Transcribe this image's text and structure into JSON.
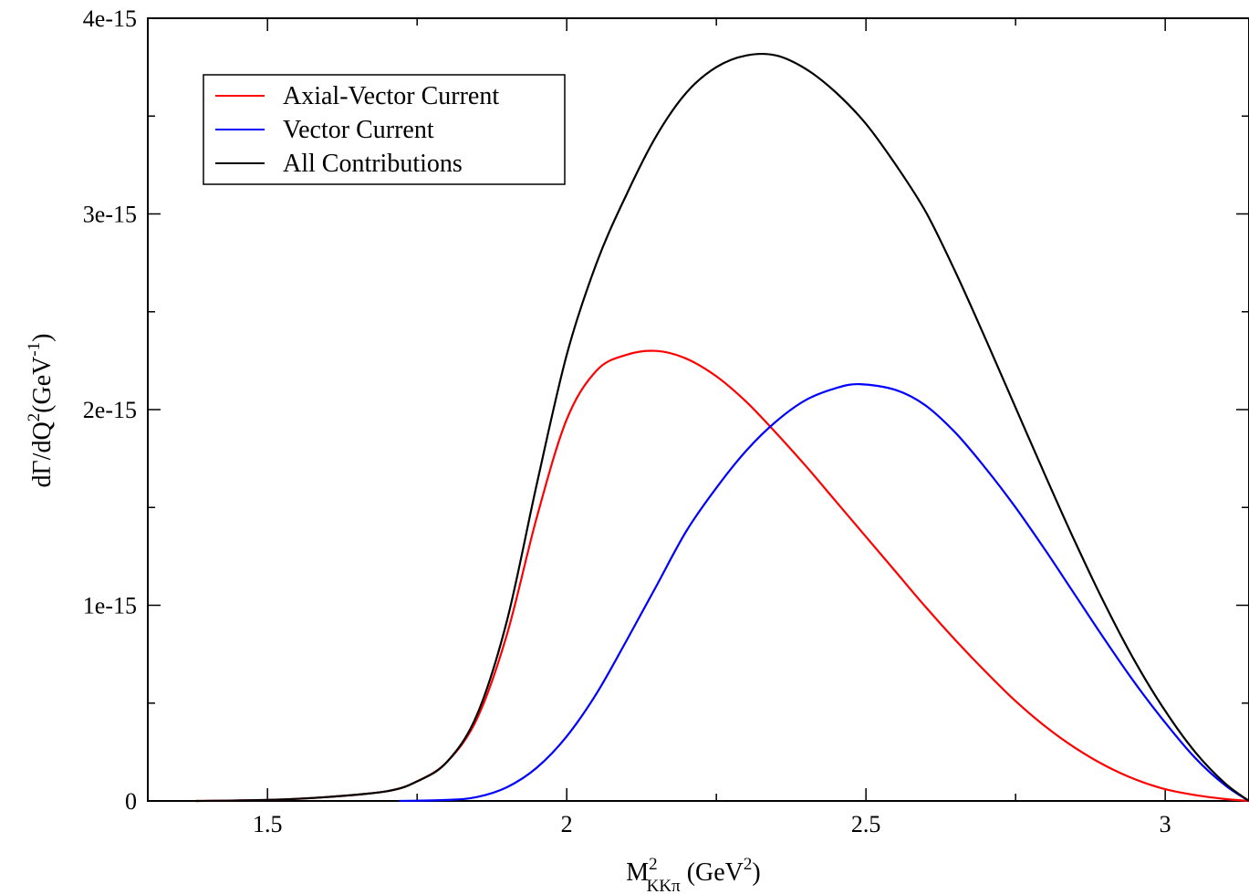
{
  "chart_data": {
    "type": "line",
    "xlabel": {
      "main": "M",
      "sup": "2",
      "sub": "KKπ",
      "units_pre": " (GeV",
      "units_sup": "2",
      "units_post": ")"
    },
    "ylabel": {
      "pre": "dΓ/dQ",
      "sup1": "2",
      "mid": "(GeV",
      "sup2": "-1",
      "post": ")"
    },
    "xlim": [
      1.3,
      3.14
    ],
    "ylim": [
      0,
      4e-15
    ],
    "x_ticks": [
      {
        "value": 1.5,
        "label": "1.5"
      },
      {
        "value": 2.0,
        "label": "2"
      },
      {
        "value": 2.5,
        "label": "2.5"
      },
      {
        "value": 3.0,
        "label": "3"
      }
    ],
    "y_ticks": [
      {
        "value": 0,
        "label": "0"
      },
      {
        "value": 1e-15,
        "label": "1e-15"
      },
      {
        "value": 2e-15,
        "label": "2e-15"
      },
      {
        "value": 3e-15,
        "label": "3e-15"
      },
      {
        "value": 4e-15,
        "label": "4e-15"
      }
    ],
    "grid": false,
    "legend_position": "top-left",
    "series": [
      {
        "name": "Axial-Vector Current",
        "color": "#ff0000",
        "points": [
          [
            1.38,
            0
          ],
          [
            1.5,
            5e-18
          ],
          [
            1.6,
            2e-17
          ],
          [
            1.7,
            5e-17
          ],
          [
            1.75,
            1e-16
          ],
          [
            1.8,
            2e-16
          ],
          [
            1.85,
            4.2e-16
          ],
          [
            1.9,
            8.5e-16
          ],
          [
            1.95,
            1.45e-15
          ],
          [
            2.0,
            1.95e-15
          ],
          [
            2.05,
            2.2e-15
          ],
          [
            2.1,
            2.28e-15
          ],
          [
            2.15,
            2.3e-15
          ],
          [
            2.2,
            2.26e-15
          ],
          [
            2.25,
            2.17e-15
          ],
          [
            2.3,
            2.04e-15
          ],
          [
            2.35,
            1.88e-15
          ],
          [
            2.4,
            1.71e-15
          ],
          [
            2.45,
            1.53e-15
          ],
          [
            2.5,
            1.35e-15
          ],
          [
            2.55,
            1.17e-15
          ],
          [
            2.6,
            9.9e-16
          ],
          [
            2.65,
            8.2e-16
          ],
          [
            2.7,
            6.6e-16
          ],
          [
            2.75,
            5.1e-16
          ],
          [
            2.8,
            3.8e-16
          ],
          [
            2.85,
            2.7e-16
          ],
          [
            2.9,
            1.8e-16
          ],
          [
            2.95,
            1.1e-16
          ],
          [
            3.0,
            6e-17
          ],
          [
            3.05,
            3e-17
          ],
          [
            3.1,
            1e-17
          ],
          [
            3.14,
            0
          ]
        ]
      },
      {
        "name": "Vector Current",
        "color": "#0000ff",
        "points": [
          [
            1.72,
            0
          ],
          [
            1.8,
            5e-18
          ],
          [
            1.85,
            2e-17
          ],
          [
            1.9,
            7e-17
          ],
          [
            1.95,
            1.7e-16
          ],
          [
            2.0,
            3.3e-16
          ],
          [
            2.05,
            5.5e-16
          ],
          [
            2.1,
            8.2e-16
          ],
          [
            2.15,
            1.1e-15
          ],
          [
            2.2,
            1.38e-15
          ],
          [
            2.25,
            1.6e-15
          ],
          [
            2.3,
            1.79e-15
          ],
          [
            2.35,
            1.94e-15
          ],
          [
            2.4,
            2.05e-15
          ],
          [
            2.45,
            2.11e-15
          ],
          [
            2.49,
            2.13e-15
          ],
          [
            2.55,
            2.1e-15
          ],
          [
            2.6,
            2.02e-15
          ],
          [
            2.65,
            1.88e-15
          ],
          [
            2.7,
            1.7e-15
          ],
          [
            2.75,
            1.5e-15
          ],
          [
            2.8,
            1.28e-15
          ],
          [
            2.85,
            1.05e-15
          ],
          [
            2.9,
            8.2e-16
          ],
          [
            2.95,
            6e-16
          ],
          [
            3.0,
            4e-16
          ],
          [
            3.05,
            2.2e-16
          ],
          [
            3.1,
            8e-17
          ],
          [
            3.14,
            0
          ]
        ]
      },
      {
        "name": "All Contributions",
        "color": "#000000",
        "points": [
          [
            1.38,
            0
          ],
          [
            1.5,
            5e-18
          ],
          [
            1.6,
            2e-17
          ],
          [
            1.7,
            5e-17
          ],
          [
            1.75,
            1e-16
          ],
          [
            1.8,
            2e-16
          ],
          [
            1.85,
            4.4e-16
          ],
          [
            1.9,
            9.2e-16
          ],
          [
            1.95,
            1.62e-15
          ],
          [
            2.0,
            2.28e-15
          ],
          [
            2.05,
            2.75e-15
          ],
          [
            2.1,
            3.1e-15
          ],
          [
            2.15,
            3.4e-15
          ],
          [
            2.2,
            3.62e-15
          ],
          [
            2.25,
            3.75e-15
          ],
          [
            2.3,
            3.81e-15
          ],
          [
            2.35,
            3.81e-15
          ],
          [
            2.4,
            3.74e-15
          ],
          [
            2.45,
            3.62e-15
          ],
          [
            2.5,
            3.46e-15
          ],
          [
            2.55,
            3.25e-15
          ],
          [
            2.6,
            3.01e-15
          ],
          [
            2.65,
            2.7e-15
          ],
          [
            2.7,
            2.36e-15
          ],
          [
            2.75,
            2.01e-15
          ],
          [
            2.8,
            1.66e-15
          ],
          [
            2.85,
            1.32e-15
          ],
          [
            2.9,
            1e-15
          ],
          [
            2.95,
            7.1e-16
          ],
          [
            3.0,
            4.6e-16
          ],
          [
            3.05,
            2.5e-16
          ],
          [
            3.1,
            9e-17
          ],
          [
            3.14,
            0
          ]
        ]
      }
    ]
  }
}
